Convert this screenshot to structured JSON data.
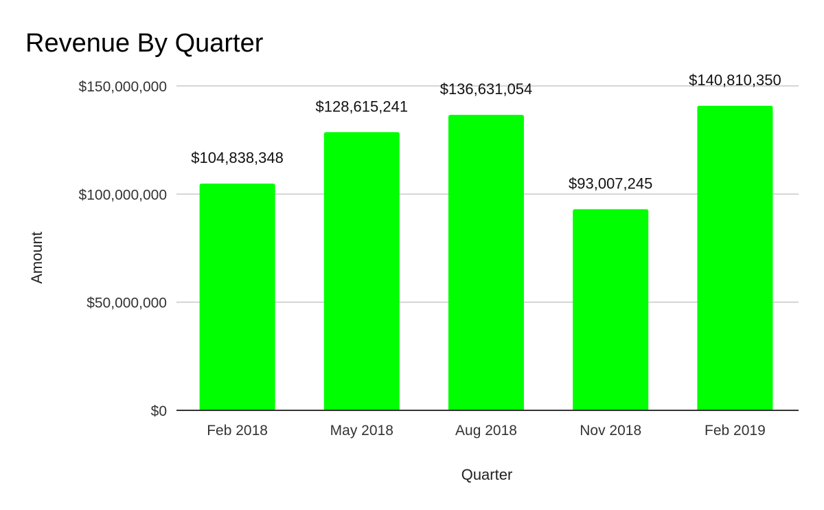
{
  "chart_data": {
    "type": "bar",
    "title": "Revenue By Quarter",
    "xlabel": "Quarter",
    "ylabel": "Amount",
    "categories": [
      "Feb 2018",
      "May 2018",
      "Aug 2018",
      "Nov 2018",
      "Feb 2019"
    ],
    "values": [
      104838348,
      128615241,
      136631054,
      93007245,
      140810350
    ],
    "data_labels": [
      "$104,838,348",
      "$128,615,241",
      "$136,631,054",
      "$93,007,245",
      "$140,810,350"
    ],
    "ylim": [
      0,
      150000000
    ],
    "yticks": [
      0,
      50000000,
      100000000,
      150000000
    ],
    "ytick_labels": [
      "$0",
      "$50,000,000",
      "$100,000,000",
      "$150,000,000"
    ],
    "bar_color": "#00ff00",
    "grid": true,
    "legend": "none"
  }
}
